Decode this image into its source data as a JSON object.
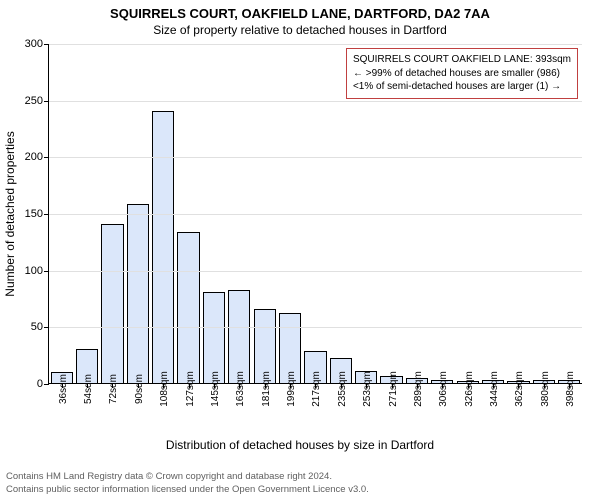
{
  "title_main": "SQUIRRELS COURT, OAKFIELD LANE, DARTFORD, DA2 7AA",
  "title_sub": "Size of property relative to detached houses in Dartford",
  "y_axis_label": "Number of detached properties",
  "x_axis_label": "Distribution of detached houses by size in Dartford",
  "chart": {
    "type": "bar",
    "ylim_max": 300,
    "yticks": [
      0,
      50,
      100,
      150,
      200,
      250,
      300
    ],
    "bar_fill": "#dbe7fa",
    "bar_stroke": "#000000",
    "grid_color": "#e0e0e0",
    "background": "#ffffff",
    "categories": [
      "36sqm",
      "54sqm",
      "72sqm",
      "90sqm",
      "108sqm",
      "127sqm",
      "145sqm",
      "163sqm",
      "181sqm",
      "199sqm",
      "217sqm",
      "235sqm",
      "253sqm",
      "271sqm",
      "289sqm",
      "306sqm",
      "326sqm",
      "344sqm",
      "362sqm",
      "380sqm",
      "398sqm"
    ],
    "values": [
      10,
      30,
      140,
      158,
      240,
      133,
      80,
      82,
      65,
      62,
      28,
      22,
      11,
      6,
      4,
      3,
      2,
      3,
      2,
      3,
      3
    ]
  },
  "legend": {
    "border_color": "#c04040",
    "lines": [
      "SQUIRRELS COURT OAKFIELD LANE: 393sqm",
      "← >99% of detached houses are smaller (986)",
      "<1% of semi-detached houses are larger (1) →"
    ]
  },
  "footer": {
    "line1": "Contains HM Land Registry data © Crown copyright and database right 2024.",
    "line2": "Contains public sector information licensed under the Open Government Licence v3.0."
  }
}
